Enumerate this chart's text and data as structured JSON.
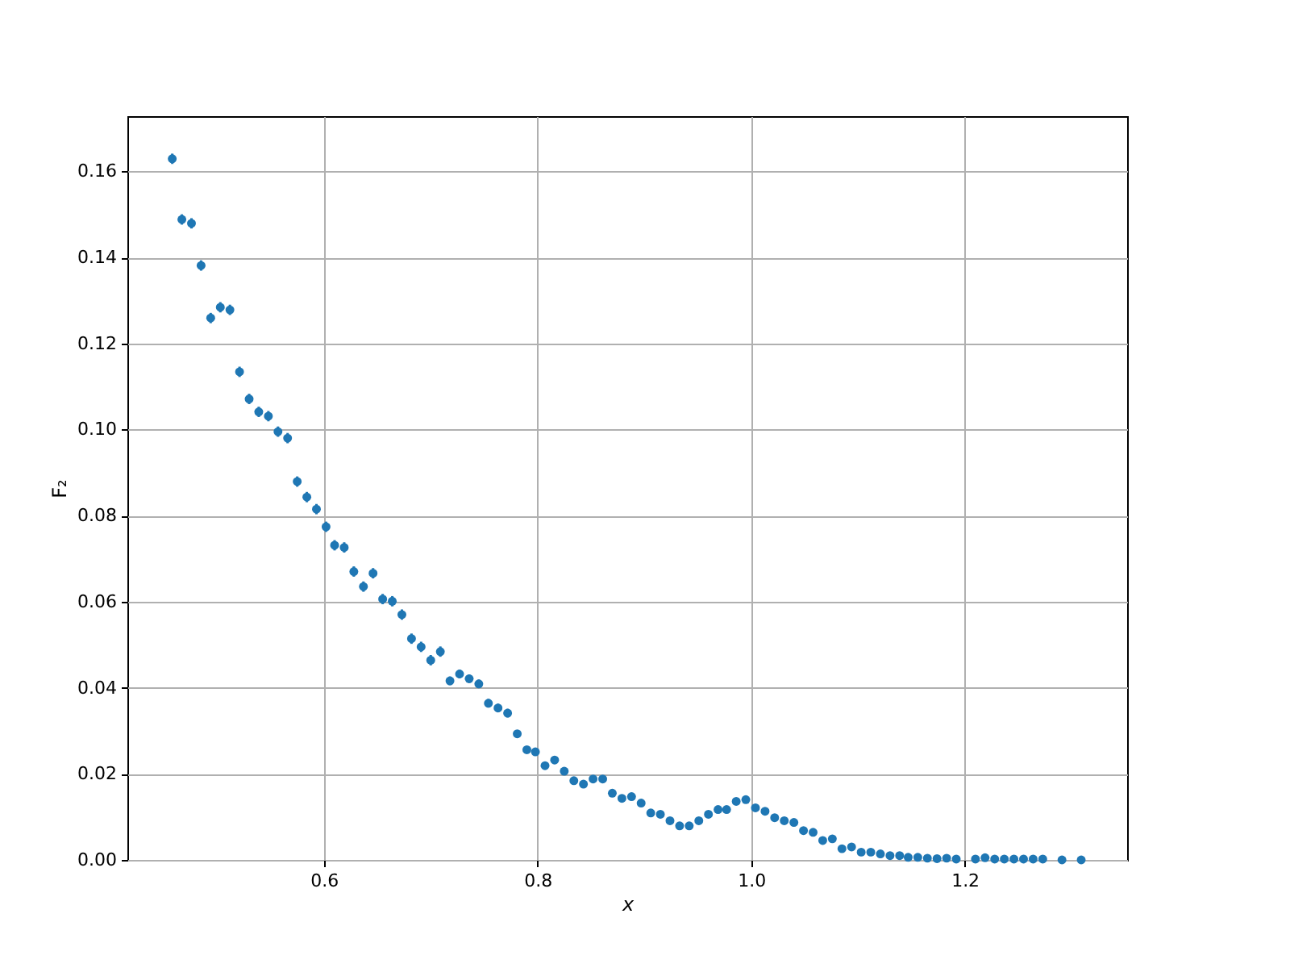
{
  "chart_data": {
    "type": "scatter",
    "xlabel": "x",
    "ylabel": "F₂",
    "marker": "circle",
    "grid": true,
    "xlim": [
      0.416,
      1.352
    ],
    "ylim": [
      0,
      0.1728
    ],
    "xticks": [
      0.6,
      0.8,
      {
        "value": 1,
        "label": "1.0"
      },
      1.2
    ],
    "yticks": [
      {
        "value": 0,
        "label": "0.00"
      },
      0.02,
      0.04,
      0.06,
      0.08,
      {
        "value": 0.1,
        "label": "0.10"
      },
      0.12,
      0.14,
      0.16
    ],
    "series": [
      {
        "color": "#1f77b4",
        "x": [
          0.458,
          0.467,
          0.476,
          0.485,
          0.494,
          0.503,
          0.512,
          0.521,
          0.53,
          0.539,
          0.548,
          0.557,
          0.566,
          0.575,
          0.584,
          0.593,
          0.602,
          0.61,
          0.619,
          0.628,
          0.637,
          0.646,
          0.655,
          0.664,
          0.673,
          0.682,
          0.691,
          0.7,
          0.709,
          0.718,
          0.727,
          0.736,
          0.745,
          0.754,
          0.763,
          0.772,
          0.781,
          0.79,
          0.798,
          0.807,
          0.816,
          0.825,
          0.834,
          0.843,
          0.852,
          0.861,
          0.87,
          0.879,
          0.888,
          0.897,
          0.906,
          0.915,
          0.924,
          0.933,
          0.942,
          0.951,
          0.96,
          0.969,
          0.977,
          0.986,
          0.995,
          1.004,
          1.013,
          1.022,
          1.031,
          1.04,
          1.049,
          1.058,
          1.067,
          1.076,
          1.085,
          1.094,
          1.103,
          1.112,
          1.121,
          1.13,
          1.139,
          1.147,
          1.156,
          1.165,
          1.174,
          1.183,
          1.192,
          1.21,
          1.219,
          1.228,
          1.237,
          1.246,
          1.255,
          1.264,
          1.273,
          1.291,
          1.309
        ],
        "values": [
          0.1629,
          0.1488,
          0.1479,
          0.1381,
          0.1259,
          0.1284,
          0.1278,
          0.1134,
          0.1071,
          0.1041,
          0.1031,
          0.0995,
          0.098,
          0.0879,
          0.0843,
          0.0815,
          0.0774,
          0.0731,
          0.0726,
          0.067,
          0.0635,
          0.0666,
          0.0606,
          0.0601,
          0.057,
          0.0514,
          0.0495,
          0.0464,
          0.0484,
          0.0416,
          0.0432,
          0.0421,
          0.0409,
          0.0364,
          0.0353,
          0.0341,
          0.0293,
          0.0256,
          0.0251,
          0.0219,
          0.0232,
          0.0206,
          0.0184,
          0.0176,
          0.0188,
          0.0188,
          0.0155,
          0.0143,
          0.0147,
          0.0132,
          0.0109,
          0.0106,
          0.0091,
          0.0079,
          0.0079,
          0.0091,
          0.0106,
          0.0117,
          0.0117,
          0.0136,
          0.014,
          0.0121,
          0.0113,
          0.0098,
          0.0091,
          0.0087,
          0.0068,
          0.0064,
          0.0045,
          0.0049,
          0.0026,
          0.003,
          0.0018,
          0.0018,
          0.0014,
          0.001,
          0.001,
          0.0006,
          0.0006,
          0.0004,
          0.0003,
          0.0004,
          0.0002,
          0.0002,
          0.0005,
          0.0002,
          0.0002,
          0.0002,
          0.0002,
          0.0002,
          0.0002,
          0,
          0
        ],
        "errors": [
          0.0012,
          0.0012,
          0.0012,
          0.0012,
          0.0012,
          0.0012,
          0.0012,
          0.0012,
          0.0012,
          0.0012,
          0.0012,
          0.0012,
          0.0012,
          0.0012,
          0.0012,
          0.0012,
          0.0012,
          0.0012,
          0.0012,
          0.0012,
          0.0012,
          0.0012,
          0.0012,
          0.0012,
          0.0012,
          0.0012,
          0.0012,
          0.0012,
          0.0012,
          0.001,
          0.001,
          0.001,
          0.001,
          0.001,
          0.001,
          0.001,
          null,
          null,
          null,
          null,
          null,
          null,
          null,
          null,
          null,
          null,
          null,
          null,
          null,
          null,
          null,
          null,
          null,
          null,
          null,
          null,
          null,
          null,
          null,
          null,
          null,
          null,
          null,
          null,
          null,
          null,
          null,
          null,
          null,
          null,
          null,
          null,
          null,
          null,
          null,
          null,
          null,
          null,
          null,
          null,
          null,
          null,
          null,
          null,
          null,
          null,
          null,
          null,
          null,
          null,
          null,
          null,
          null
        ]
      }
    ]
  }
}
